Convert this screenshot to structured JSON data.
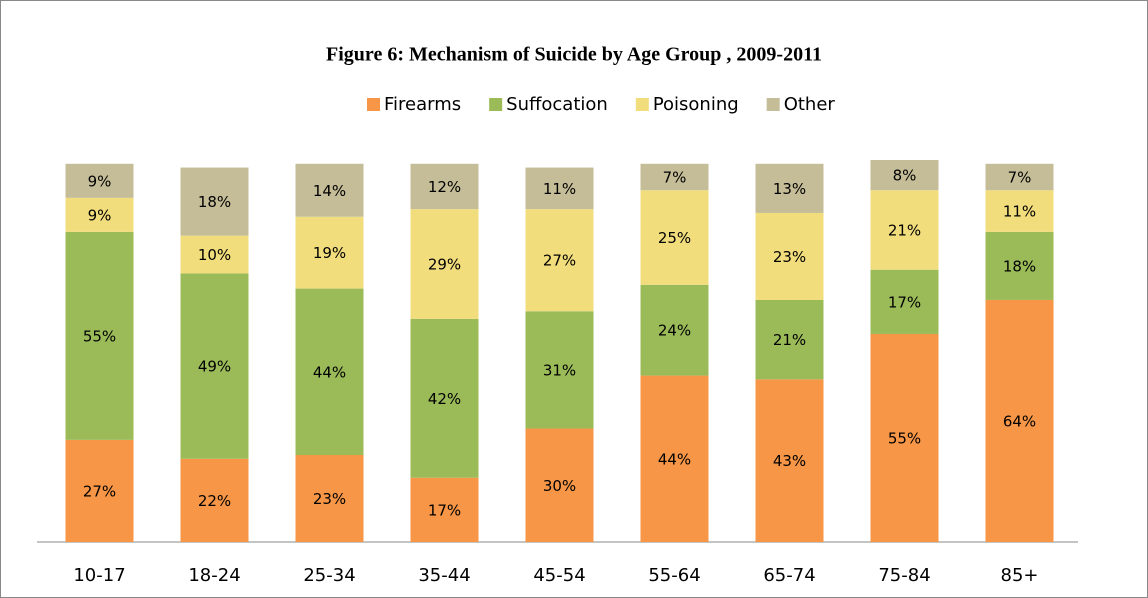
{
  "chart_data": {
    "type": "stacked_bar",
    "title": "Figure 6: Mechanism of Suicide by Age Group , 2009-2011",
    "categories": [
      "10-17",
      "18-24",
      "25-34",
      "35-44",
      "45-54",
      "55-64",
      "65-74",
      "75-84",
      "85+"
    ],
    "series": [
      {
        "name": "Firearms",
        "color": "#f79646",
        "values": [
          27,
          22,
          23,
          17,
          30,
          44,
          43,
          55,
          64
        ],
        "value_labels": [
          "27%",
          "22%",
          "23%",
          "17%",
          "30%",
          "44%",
          "43%",
          "55%",
          "64%"
        ]
      },
      {
        "name": "Suffocation",
        "color": "#9bbb59",
        "values": [
          55,
          49,
          44,
          42,
          31,
          24,
          21,
          17,
          18
        ],
        "value_labels": [
          "55%",
          "49%",
          "44%",
          "42%",
          "31%",
          "24%",
          "21%",
          "17%",
          "18%"
        ]
      },
      {
        "name": "Poisoning",
        "color": "#f2dd7c",
        "values": [
          9,
          10,
          19,
          29,
          27,
          25,
          23,
          21,
          11
        ],
        "value_labels": [
          "9%",
          "10%",
          "19%",
          "29%",
          "27%",
          "25%",
          "23%",
          "21%",
          "11%"
        ]
      },
      {
        "name": "Other",
        "color": "#c4bd97",
        "values": [
          9,
          18,
          14,
          12,
          11,
          7,
          13,
          8,
          7
        ],
        "value_labels": [
          "9%",
          "18%",
          "14%",
          "12%",
          "11%",
          "7%",
          "13%",
          "8%",
          "7%"
        ]
      }
    ],
    "legend": "top"
  }
}
